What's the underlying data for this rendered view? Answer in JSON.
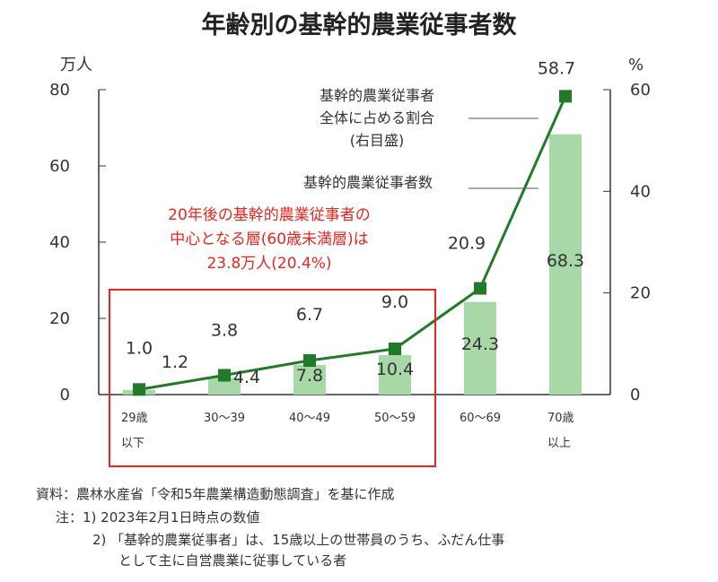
{
  "chart_data": {
    "type": "bar+line",
    "title": "年齢別の基幹的農業従事者数",
    "categories": [
      [
        "29歳",
        "以下"
      ],
      [
        "30～39"
      ],
      [
        "40～49"
      ],
      [
        "50～59"
      ],
      [
        "60～69"
      ],
      [
        "70歳",
        "以上"
      ]
    ],
    "series": [
      {
        "name": "基幹的農業従事者数",
        "type": "bar",
        "axis": "left",
        "values": [
          1.2,
          4.4,
          7.8,
          10.4,
          24.3,
          68.3
        ],
        "color": "#a8d8a8"
      },
      {
        "name": "基幹的農業従事者全体に占める割合(右目盛)",
        "type": "line",
        "axis": "right",
        "values": [
          1.0,
          3.8,
          6.7,
          9.0,
          20.9,
          58.7
        ],
        "color": "#217a2a"
      }
    ],
    "left_axis": {
      "unit": "万人",
      "ylim": [
        0,
        80
      ],
      "ticks": [
        0,
        20,
        40,
        60,
        80
      ]
    },
    "right_axis": {
      "unit": "%",
      "ylim": [
        0,
        60
      ],
      "ticks": [
        0,
        20,
        40,
        60
      ]
    },
    "annotations": {
      "line_legend": [
        "基幹的農業従事者",
        "全体に占める割合",
        "(右目盛)"
      ],
      "bar_legend": "基幹的農業従事者数",
      "highlight": [
        "20年後の基幹的農業従事者の",
        "中心となる層(60歳未満層)は",
        "23.8万人(20.4%)"
      ],
      "highlight_color": "#e8261e"
    }
  },
  "notes": {
    "source": "資料：農林水産省「令和5年農業構造動態調査」を基に作成",
    "note1": "注：1) 2023年2月1日時点の数値",
    "note2a": "2) 「基幹的農業従事者」は、15歳以上の世帯員のうち、ふだん仕事",
    "note2b": "として主に自営農業に従事している者"
  }
}
